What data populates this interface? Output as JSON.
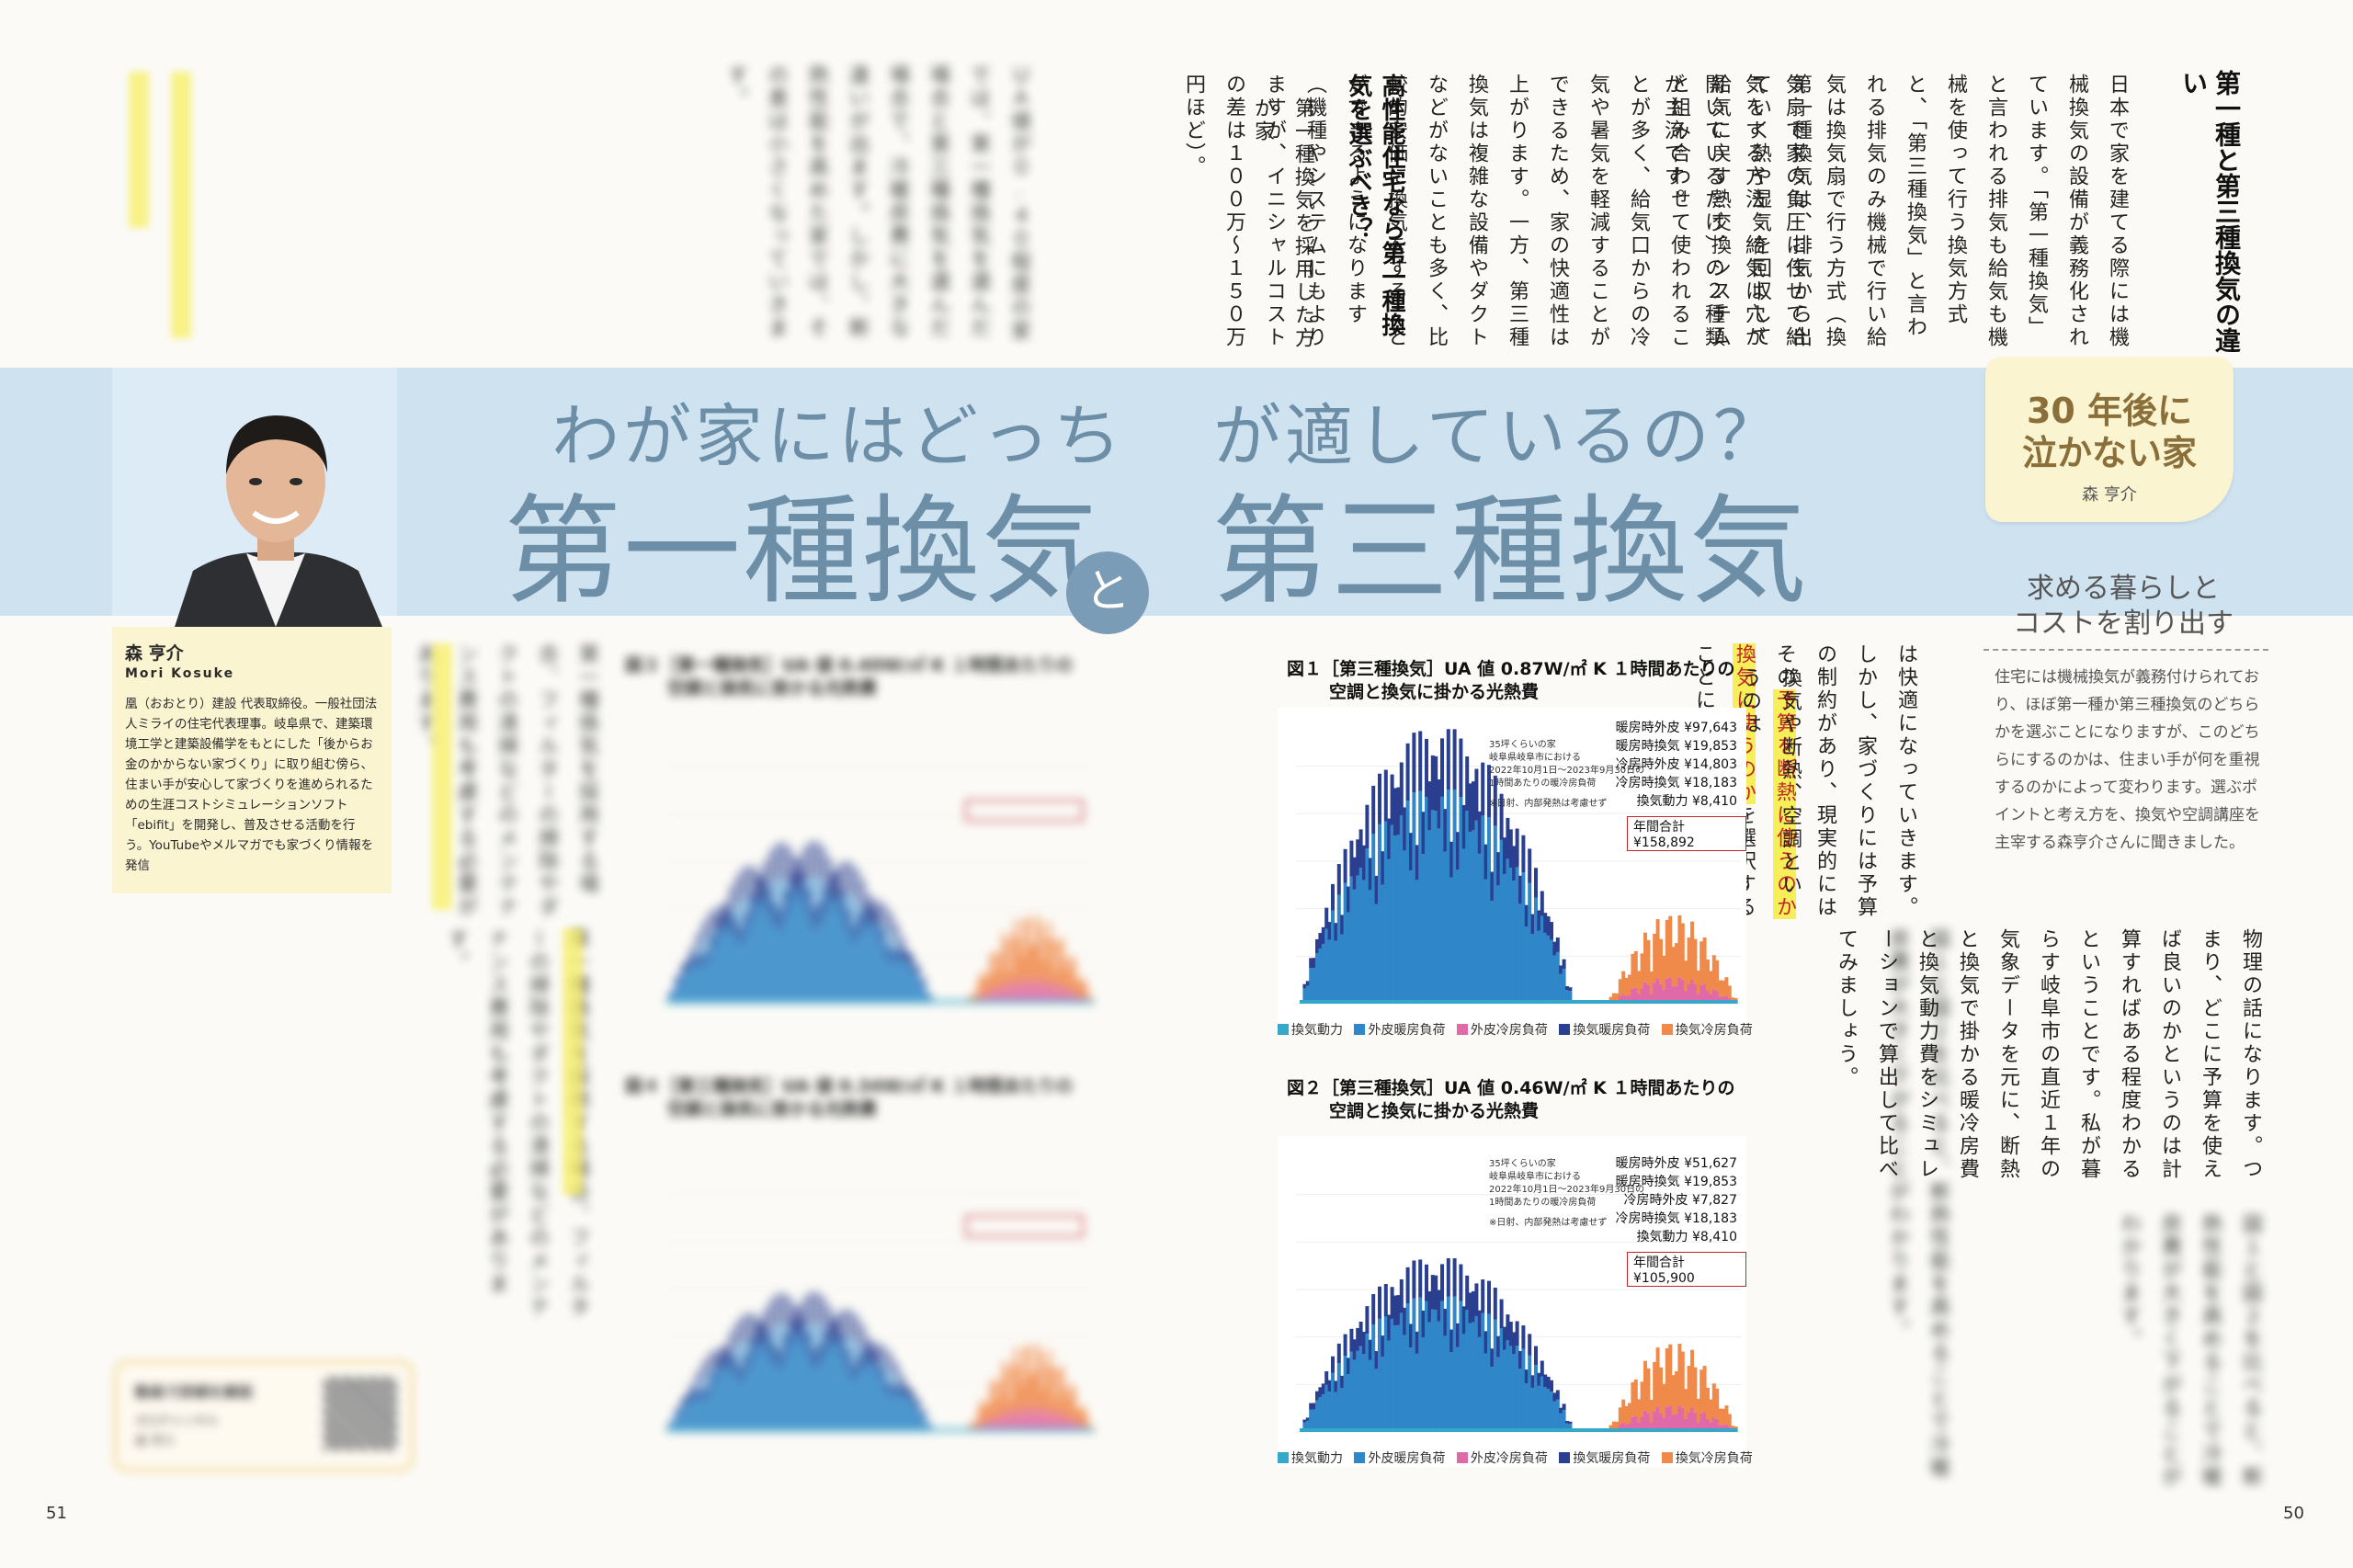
{
  "page_numbers": {
    "left": "51",
    "right": "50"
  },
  "banner": {
    "subtitle_part1": "わが家にはどっち",
    "subtitle_part2": "が適しているの？",
    "title_left": "第一種換気",
    "connector": "と",
    "title_right": "第三種換気"
  },
  "badge": {
    "line1": "30 年後に",
    "line2": "泣かない家",
    "author": "森 亨介"
  },
  "lead": {
    "heading_line1": "求める暮らしと",
    "heading_line2": "コストを割り出す",
    "body": "住宅には機械換気が義務付けられており、ほぼ第一種か第三種換気のどちらかを選ぶことになりますが、このどちらにするのかは、住まい手が何を重視するのかによって変わります。選ぶポイントと考え方を、換気や空調講座を主宰する森亨介さんに聞きました。"
  },
  "profile": {
    "name": "森 亨介",
    "roman": "Mori Kosuke",
    "bio": "凰（おおとり）建設 代表取締役。一般社団法人ミライの住宅代表理事。岐阜県で、建築環境工学と建築設備学をもとにした「後からお金のかからない家づくり」に取り組む傍ら、住まい手が安心して家づくりを進められるための生涯コストシミュレーションソフト「ebifit」を開発し、普及させる活動を行う。YouTubeやメルマガでも家づくり情報を発信"
  },
  "article_top": {
    "heading1": "第一種と第三種換気の違い",
    "col1": "日本で家を建てる際には機械換気の設備が義務化されています。「第一種換気」と言われる排気も給気も機械を使って行う換気方式と、「第三種換気」と言われる排気のみ機械で行い給気は換気扇で行う方式（換気扇で家の負圧に任せて給気をする方法：給気は穴が開いているだけ）の２種類が主流です。",
    "col2": "第一種換気は、排気から出ていく熱や湿気を回収して給気に戻す熱交換システムと組み合わせて使われることが多く、給気口からの冷気や暑気を軽減することができるため、家の快適性は上がります。一方、第三種換気は複雑な設備やダクトなどがないことも多く、比較的安価に換気をすることができるようになります（機種やシステムにもよりますが、イニシャルコストの差は１００万〜１５０万円ほど）。",
    "heading2": "高性能住宅なら第一種換気を選ぶべき？",
    "col3": "第一種換気を採用した方が家"
  },
  "article_mid": {
    "col_a": "は快適になっていきます。しかし、家づくりには予算の制約があり、現実的にはその",
    "col_a_mark": "予算を断熱に使うのか換気に使うのか",
    "col_a_end": "を選択することになります。",
    "col_b": "換気や断熱、空調というのは",
    "col_c": "物理の話になります。つまり、どこに予算を使えば良いのかというのは計算すればある程度わかるということです。私が暮らす岐阜市の直近１年の気象データを元に、断熱と換気で掛かる暖冷房費と換気動力費をシミュレーションで算出して比べてみましょう。"
  },
  "blurred_text": {
    "left_top": "ＵＡ値が０.４０程度の家では、第一種換気を選んだ場合と第三種換気を選んだ場合で、冷暖房費に大きな違いが出ます。しかし、断熱性能を高めた家では、その差は小さくなっていきます。",
    "left_bottom": "第一種換気を採用する場合、フィルターの掃除やダクトの清掃などのメンテナンス費用も考慮する必要があります。",
    "right_bottom": "図１と図２を比べると、断熱性能を高めることで冷暖房費が大きく下がることがわかります。"
  },
  "video_box": {
    "title": "動画で詳細を解説",
    "channel": "ゼロチャンネル",
    "person": "森 亨介"
  },
  "charts": {
    "fig1": {
      "title_line1": "図１［第三種換気］UA 値 0.87W/㎡ K １時間あたりの",
      "title_line2": "空調と換気に掛かる光熱費",
      "note1": "35坪くらいの家",
      "note2": "岐阜県岐阜市における",
      "note3": "2022年10月1日〜2023年9月30日の",
      "note4": "1時間あたりの暖冷房負荷",
      "note5": "※日射、内部発熱は考慮せず",
      "stats": [
        "暖房時外皮 ¥97,643",
        "暖房時換気 ¥19,853",
        "冷房時外皮 ¥14,803",
        "冷房時換気 ¥18,183",
        "換気動力 ¥8,410"
      ],
      "total": "年間合計 ¥158,892"
    },
    "fig2": {
      "title_line1": "図２［第三種換気］UA 値 0.46W/㎡ K １時間あたりの",
      "title_line2": "空調と換気に掛かる光熱費",
      "note1": "35坪くらいの家",
      "note2": "岐阜県岐阜市における",
      "note3": "2022年10月1日〜2023年9月30日の",
      "note4": "1時間あたりの暖冷房負荷",
      "note5": "※日射、内部発熱は考慮せず",
      "stats": [
        "暖房時外皮 ¥51,627",
        "暖房時換気 ¥19,853",
        "冷房時外皮 ¥7,827",
        "冷房時換気 ¥18,183",
        "換気動力 ¥8,410"
      ],
      "total": "年間合計 ¥105,900"
    },
    "fig3": {
      "title_line1": "図３［第一種換気］UA 値 0.40W/㎡ K １時間あたりの",
      "title_line2": "空調と換気に掛かる光熱費"
    },
    "fig4": {
      "title_line1": "図４［第三種換気］UA 値 0.34W/㎡ K １時間あたりの",
      "title_line2": "空調と換気に掛かる光熱費"
    },
    "legend": [
      "換気動力",
      "外皮暖房負荷",
      "外皮冷房負荷",
      "換気暖房負荷",
      "換気冷房負荷"
    ],
    "legend_colors": [
      "#36a8c9",
      "#2f86c9",
      "#e06aa8",
      "#2a3f8f",
      "#f08a4b"
    ]
  }
}
